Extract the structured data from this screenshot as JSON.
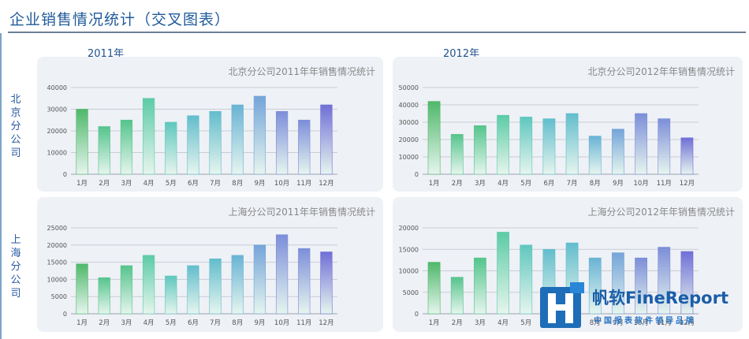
{
  "page": {
    "title": "企业销售情况统计（交叉图表）"
  },
  "columns": [
    "2011年",
    "2012年"
  ],
  "rows": [
    "北京分公司",
    "上海分公司"
  ],
  "watermark": {
    "brand": "帆软FineReport",
    "tagline": "中国报表软件领导品牌"
  },
  "colors": {
    "series_top": [
      "#4fb86a",
      "#55c48c",
      "#5ccba6",
      "#5fc7bd",
      "#62bdcc",
      "#69b3d4",
      "#74a4d8",
      "#7c8ed9",
      "#6f6fd6"
    ],
    "series_bottom": "#e6f5ee"
  },
  "chart_data": [
    {
      "type": "bar",
      "title": "北京分公司2011年年销售情况统计",
      "categories": [
        "1月",
        "2月",
        "3月",
        "4月",
        "5月",
        "6月",
        "7月",
        "8月",
        "9月",
        "10月",
        "11月",
        "12月"
      ],
      "values": [
        30000,
        22000,
        25000,
        35000,
        24000,
        27000,
        29000,
        32000,
        36000,
        29000,
        25000,
        32000
      ],
      "yticks": [
        "0",
        "10000",
        "20000",
        "30000",
        "40000"
      ],
      "ylim": [
        0,
        40000
      ],
      "grid": true
    },
    {
      "type": "bar",
      "title": "北京分公司2012年年销售情况统计",
      "categories": [
        "1月",
        "2月",
        "3月",
        "4月",
        "5月",
        "6月",
        "7月",
        "8月",
        "9月",
        "10月",
        "11月",
        "12月"
      ],
      "values": [
        42000,
        23000,
        28000,
        34000,
        33000,
        32000,
        35000,
        22000,
        26000,
        35000,
        32000,
        21000
      ],
      "yticks": [
        "0",
        "10000",
        "20000",
        "30000",
        "40000",
        "50000"
      ],
      "ylim": [
        0,
        50000
      ],
      "grid": true
    },
    {
      "type": "bar",
      "title": "上海分公司2011年年销售情况统计",
      "categories": [
        "1月",
        "2月",
        "3月",
        "4月",
        "5月",
        "6月",
        "7月",
        "8月",
        "9月",
        "10月",
        "11月",
        "12月"
      ],
      "values": [
        14500,
        10500,
        14000,
        17000,
        11000,
        14000,
        16000,
        17000,
        20000,
        23000,
        19000,
        18000
      ],
      "yticks": [
        "0",
        "5000",
        "10000",
        "15000",
        "20000",
        "25000"
      ],
      "ylim": [
        0,
        25000
      ],
      "grid": true
    },
    {
      "type": "bar",
      "title": "上海分公司2012年年销售情况统计",
      "categories": [
        "1月",
        "2月",
        "3月",
        "4月",
        "5月",
        "6月",
        "7月",
        "8月",
        "9月",
        "10月",
        "11月",
        "12月"
      ],
      "values": [
        12000,
        8500,
        13000,
        19000,
        16000,
        15000,
        16500,
        13000,
        14200,
        13000,
        15500,
        14500
      ],
      "yticks": [
        "0",
        "5000",
        "10000",
        "15000",
        "20000"
      ],
      "ylim": [
        0,
        20000
      ],
      "grid": true
    }
  ]
}
